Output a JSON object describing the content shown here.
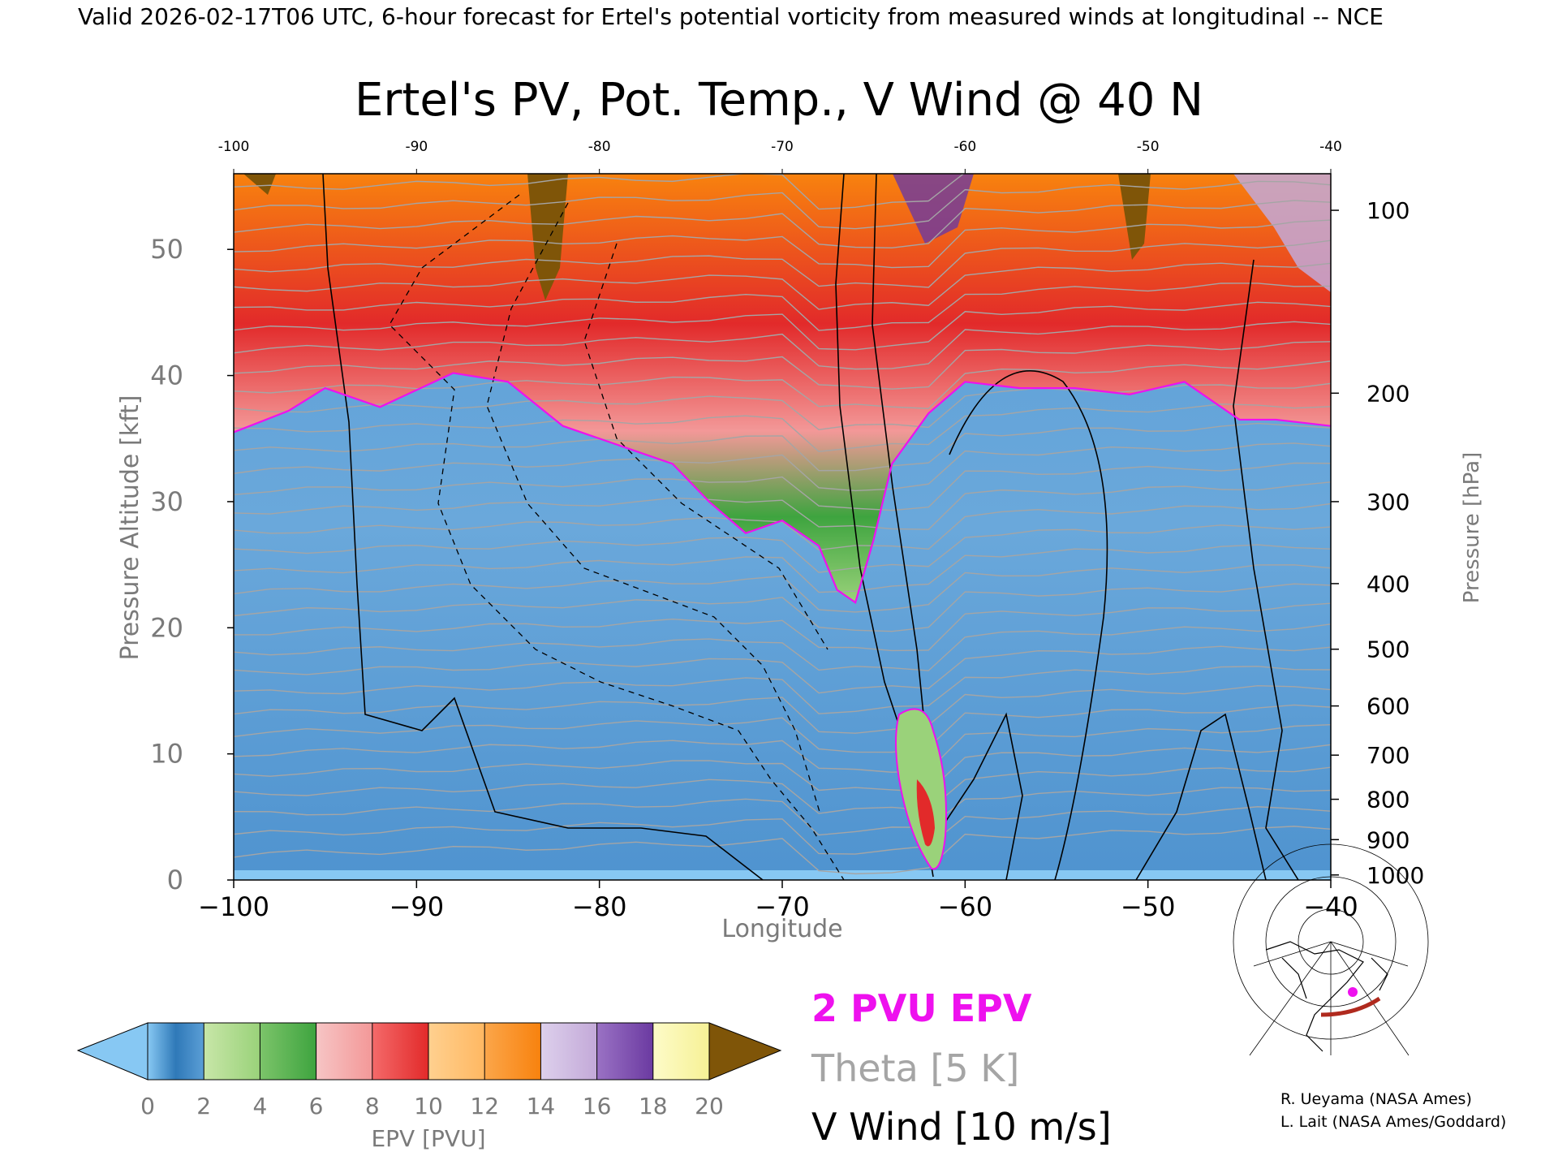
{
  "header": {
    "valid_line": "Valid 2026-02-17T06 UTC, 6-hour forecast for Ertel's potential vorticity from measured winds at longitudinal -- NCE"
  },
  "chart_data": {
    "type": "heatmap",
    "title": "Ertel's PV, Pot. Temp., V Wind @ 40 N",
    "xlabel": "Longitude",
    "ylabel": "Pressure Altitude [kft]",
    "y2label": "Pressure [hPa]",
    "xlim": [
      -100,
      -40
    ],
    "ylim": [
      0,
      56
    ],
    "x_ticks": [
      -100,
      -90,
      -80,
      -70,
      -60,
      -50,
      -40
    ],
    "x_tick_labels": [
      "−100",
      "−90",
      "−80",
      "−70",
      "−60",
      "−50",
      "−40"
    ],
    "top_tick_labels": [
      "-100",
      "-90",
      "-80",
      "-70",
      "-60",
      "-50",
      "-40"
    ],
    "y_ticks": [
      0,
      10,
      20,
      30,
      40,
      50
    ],
    "pressure_ticks": [
      {
        "hpa": "1000",
        "kft": 0.4
      },
      {
        "hpa": "900",
        "kft": 3.2
      },
      {
        "hpa": "800",
        "kft": 6.4
      },
      {
        "hpa": "700",
        "kft": 9.9
      },
      {
        "hpa": "600",
        "kft": 13.8
      },
      {
        "hpa": "500",
        "kft": 18.3
      },
      {
        "hpa": "400",
        "kft": 23.5
      },
      {
        "hpa": "300",
        "kft": 30.0
      },
      {
        "hpa": "200",
        "kft": 38.6
      },
      {
        "hpa": "100",
        "kft": 53.1
      }
    ],
    "tropopause_2pvu_kft": [
      {
        "lon": -100,
        "kft": 35.5
      },
      {
        "lon": -97,
        "kft": 37.2
      },
      {
        "lon": -95,
        "kft": 39.0
      },
      {
        "lon": -92,
        "kft": 37.5
      },
      {
        "lon": -88,
        "kft": 40.2
      },
      {
        "lon": -85,
        "kft": 39.5
      },
      {
        "lon": -82,
        "kft": 36.0
      },
      {
        "lon": -79,
        "kft": 34.5
      },
      {
        "lon": -76,
        "kft": 33.0
      },
      {
        "lon": -74,
        "kft": 30.0
      },
      {
        "lon": -72,
        "kft": 27.5
      },
      {
        "lon": -70,
        "kft": 28.5
      },
      {
        "lon": -68,
        "kft": 26.5
      },
      {
        "lon": -67,
        "kft": 23.0
      },
      {
        "lon": -66,
        "kft": 22.0
      },
      {
        "lon": -65,
        "kft": 27.0
      },
      {
        "lon": -64,
        "kft": 33.0
      },
      {
        "lon": -62,
        "kft": 37.0
      },
      {
        "lon": -60,
        "kft": 39.5
      },
      {
        "lon": -57,
        "kft": 39.0
      },
      {
        "lon": -54,
        "kft": 39.0
      },
      {
        "lon": -51,
        "kft": 38.5
      },
      {
        "lon": -48,
        "kft": 39.5
      },
      {
        "lon": -45,
        "kft": 36.5
      },
      {
        "lon": -43,
        "kft": 36.5
      },
      {
        "lon": -40,
        "kft": 36.0
      }
    ],
    "colorbar": {
      "label": "EPV [PVU]",
      "ticks": [
        "0",
        "2",
        "4",
        "6",
        "8",
        "10",
        "12",
        "14",
        "16",
        "18",
        "20"
      ],
      "colors": [
        "#2f79b8",
        "#9ad27a",
        "#3ea43f",
        "#f39898",
        "#e22a2a",
        "#ffb862",
        "#f8820e",
        "#c3a9d8",
        "#6b3aa1",
        "#f6f196"
      ],
      "under_color": "#87c8f3",
      "over_color": "#7f5508"
    }
  },
  "legend": {
    "epv_contour": "2 PVU EPV",
    "theta": "Theta [5 K]",
    "vwind": "V Wind [10 m/s]",
    "epv_color": "#ee11ee",
    "theta_color": "#a5a5a5",
    "vwind_color": "#000000"
  },
  "credits": {
    "line1": "R. Ueyama (NASA Ames)",
    "line2": "L. Lait (NASA Ames/Goddard)"
  },
  "inset_map": {
    "section_line_color": "#b02a1e",
    "marker_color": "#ee11ee"
  }
}
